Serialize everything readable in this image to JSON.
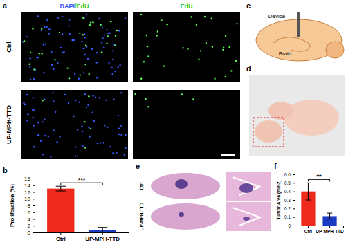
{
  "chart_data": [
    {
      "type": "bar",
      "categories": [
        "Ctrl",
        "UP-MPH-TTD"
      ],
      "values": [
        13,
        0.8
      ],
      "errors": [
        0.7,
        0.7
      ],
      "colors": [
        "#ee2a1c",
        "#1a3cc4"
      ],
      "y_label": "Proliferation (%)",
      "ylim": [
        0,
        16
      ],
      "yticks": [
        0,
        2,
        4,
        6,
        8,
        10,
        12,
        14,
        16
      ],
      "annotations": [
        "***"
      ]
    },
    {
      "type": "bar",
      "categories": [
        "Ctrl",
        "UP-MPH-TTD"
      ],
      "values": [
        0.4,
        0.11
      ],
      "errors": [
        0.1,
        0.035
      ],
      "colors": [
        "#ee2a1c",
        "#1a3cc4"
      ],
      "y_label": "Tumor Area (mm2)",
      "ylim": [
        0,
        0.6
      ],
      "yticks": [
        0,
        0.1,
        0.2,
        0.3,
        0.4,
        0.5,
        0.6
      ],
      "annotations": [
        "**"
      ]
    }
  ],
  "figure": {
    "panel_labels": [
      "a",
      "b",
      "c",
      "d",
      "e",
      "f"
    ],
    "a": {
      "column_titles": [
        [
          "DAPI",
          "/EdU"
        ],
        [
          "EdU"
        ]
      ],
      "row_labels": [
        "Ctrl",
        "UP-MPH-TTD"
      ]
    },
    "c": {
      "labels": [
        "Device",
        "Brain"
      ]
    },
    "e": {
      "row_labels": [
        "Ctrl",
        "UP-MPH-TTD"
      ]
    }
  }
}
